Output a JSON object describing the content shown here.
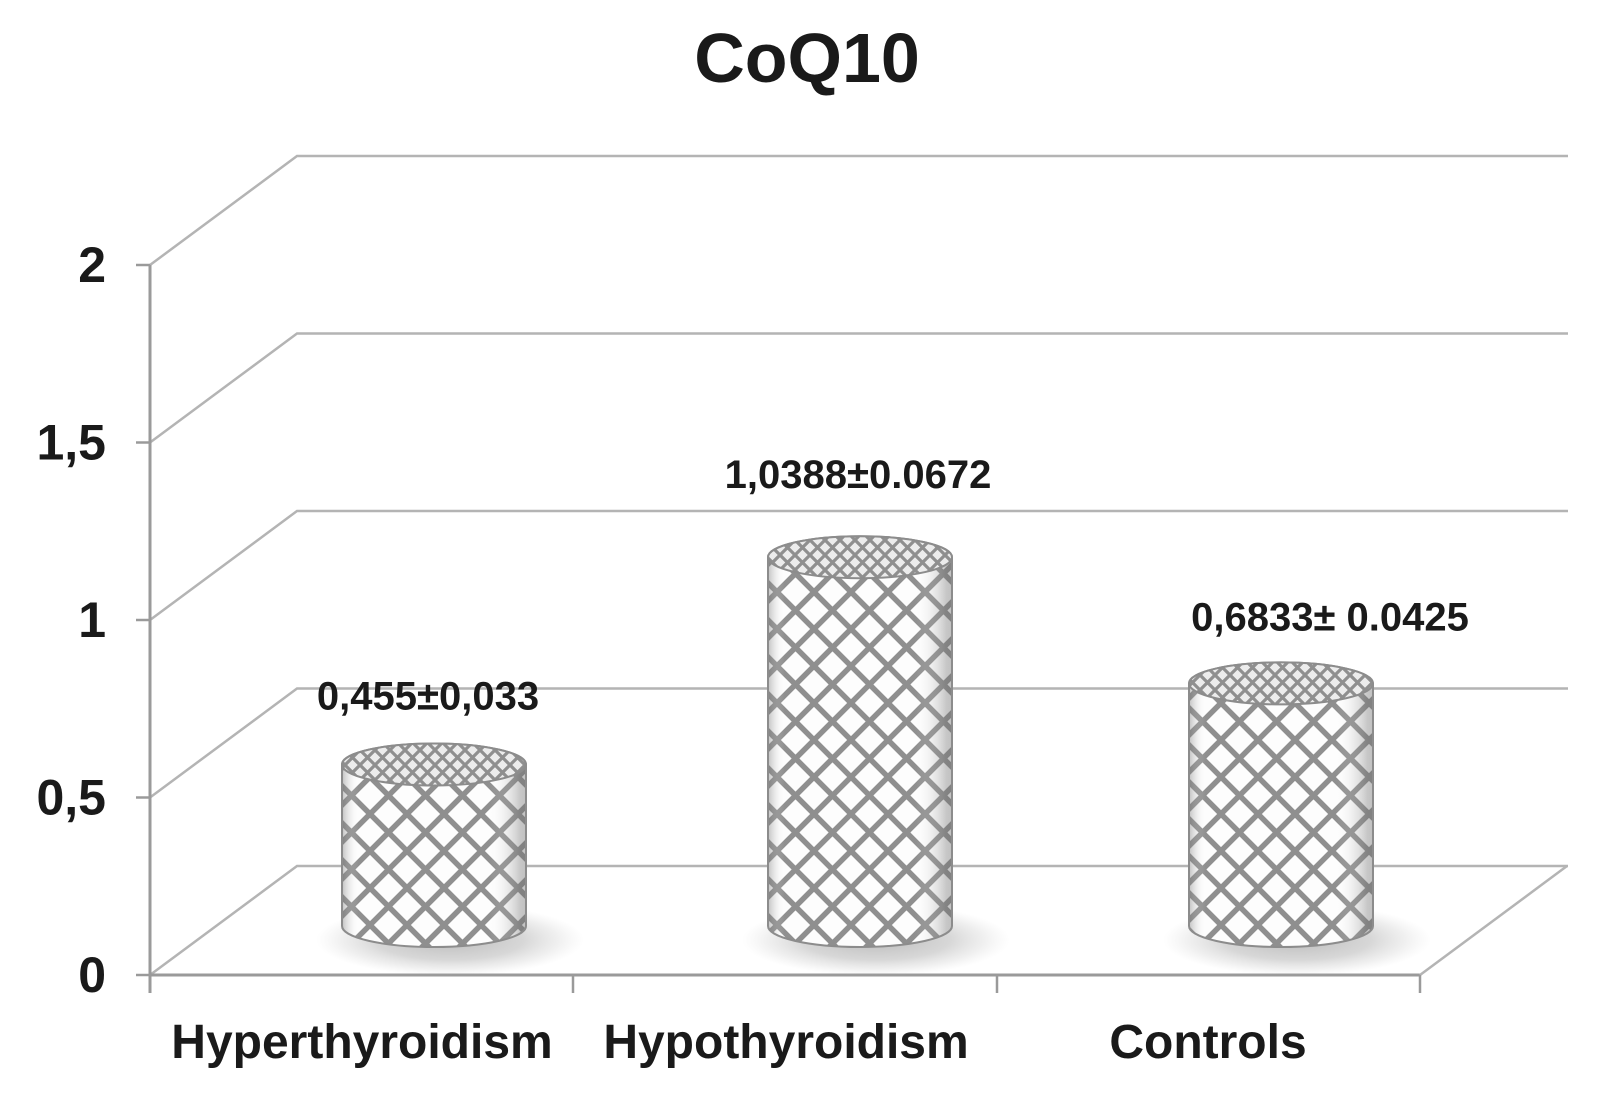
{
  "title": "CoQ10",
  "chart_data": {
    "type": "bar",
    "subtype": "3d-cylinder",
    "title": "CoQ10",
    "xlabel": "",
    "ylabel": "",
    "categories": [
      "Hyperthyroidism",
      "Hypothyroidism",
      "Controls"
    ],
    "values": [
      0.455,
      1.0388,
      0.6833
    ],
    "errors": [
      0.033,
      0.0672,
      0.0425
    ],
    "value_labels": [
      "0,455±0,033",
      "1,0388±0.0672",
      "0,6833± 0.0425"
    ],
    "y_ticks": [
      {
        "value": 0,
        "label": "0"
      },
      {
        "value": 0.5,
        "label": "0,5"
      },
      {
        "value": 1,
        "label": "1"
      },
      {
        "value": 1.5,
        "label": "1,5"
      },
      {
        "value": 2,
        "label": "2"
      }
    ],
    "ylim": [
      0,
      2
    ],
    "grid": true,
    "legend": false,
    "decimal_separator": "comma",
    "colors": {
      "text": "#1a1a1a",
      "gridline": "#b4b4b4",
      "axis": "#9a9a9a",
      "bar_outline": "#8c8c8c",
      "bar_fill": "#fdfdfd",
      "pattern_line": "#8f8f8f",
      "top_fill": "#ececec",
      "shadow": "#909090",
      "background": "#ffffff"
    }
  }
}
